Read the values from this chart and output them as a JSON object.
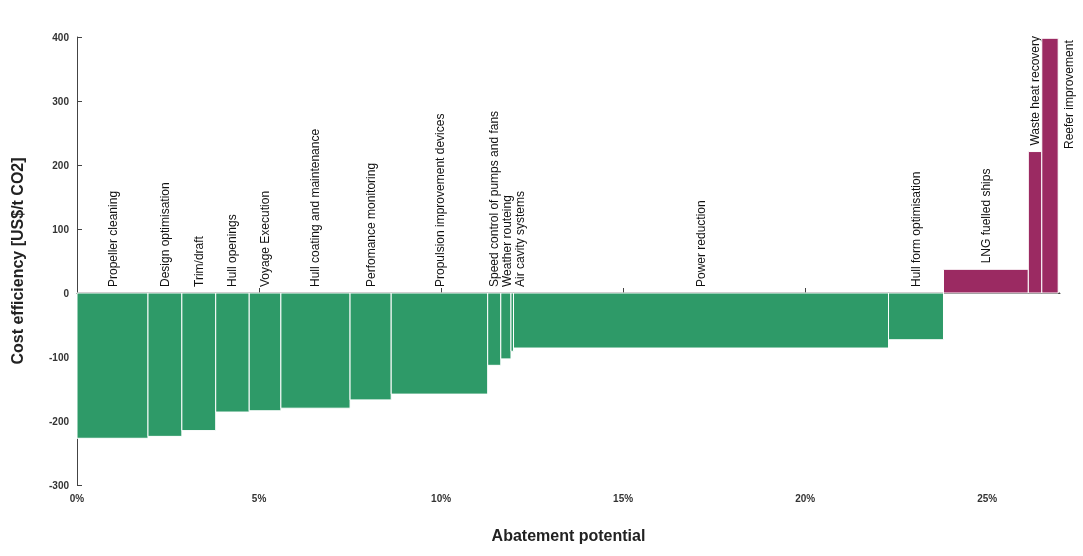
{
  "chart_data": {
    "type": "histogram",
    "xlabel": "Abatement potential",
    "ylabel": "Cost efficiency [US$/t CO2]",
    "bins": [
      0,
      1.95,
      2.88,
      3.81,
      4.73,
      5.6,
      7.5,
      8.63,
      11.28,
      11.64,
      11.92,
      11.99,
      22.29,
      23.8,
      26.13,
      26.5,
      26.95
    ],
    "values": [
      -227,
      -224,
      -215,
      -186,
      -184,
      -180,
      -167,
      -158,
      -113,
      -103,
      -91,
      -86,
      -73,
      37,
      221,
      398
    ],
    "colors": [
      "#2e9a68",
      "#2e9a68",
      "#2e9a68",
      "#2e9a68",
      "#2e9a68",
      "#2e9a68",
      "#2e9a68",
      "#2e9a68",
      "#2e9a68",
      "#2e9a68",
      "#2e9a68",
      "#2e9a68",
      "#2e9a68",
      "#9b2a62",
      "#9b2a62",
      "#9b2a62"
    ],
    "xlim": [
      0,
      27
    ],
    "xticks": [
      {
        "value": 0,
        "label": "0%"
      },
      {
        "value": 5,
        "label": "5%"
      },
      {
        "value": 10,
        "label": "10%"
      },
      {
        "value": 15,
        "label": "15%"
      },
      {
        "value": 20,
        "label": "20%"
      },
      {
        "value": 25,
        "label": "25%"
      }
    ],
    "ylim": [
      -300,
      400
    ],
    "yticks": [
      -300,
      -200,
      -100,
      0,
      100,
      200,
      300,
      400
    ],
    "annotations": [
      {
        "text": "Propeller cleaning",
        "x": 0.98,
        "y": 0
      },
      {
        "text": "Design optimisation",
        "x": 2.42,
        "y": 0
      },
      {
        "text": "Trim/draft",
        "x": 3.35,
        "y": 0
      },
      {
        "text": "Hull openings",
        "x": 4.27,
        "y": 0
      },
      {
        "text": "Voyage Execution",
        "x": 5.17,
        "y": 0
      },
      {
        "text": "Hull coating and maintenance",
        "x": 6.55,
        "y": 0
      },
      {
        "text": "Perfomance monitoring",
        "x": 8.07,
        "y": 0
      },
      {
        "text": "Propulsion improvement devices",
        "x": 9.96,
        "y": 0
      },
      {
        "text": "Speed control of pumps and fans",
        "x": 11.46,
        "y": 0
      },
      {
        "text": "Weather routeing",
        "x": 11.78,
        "y": 0
      },
      {
        "text": "Air cavity systems",
        "x": 11.96,
        "y": 0
      },
      {
        "text": "Power reduction",
        "x": 17.14,
        "y": 0
      },
      {
        "text": "Hull form optimisation",
        "x": 23.05,
        "y": 0
      },
      {
        "text": "LNG fuelled ships",
        "x": 24.97,
        "y": 37
      },
      {
        "text": "Waste heat recovery",
        "x": 26.32,
        "y": 221
      },
      {
        "text": "Reefer improvement",
        "x": 26.72,
        "y": 398
      }
    ]
  }
}
